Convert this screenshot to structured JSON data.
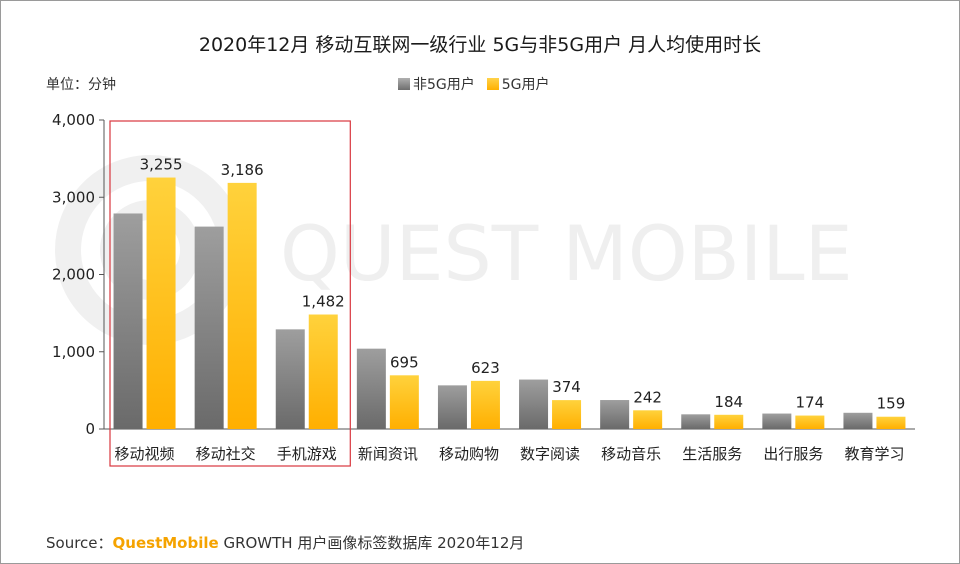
{
  "chart_data": {
    "type": "bar",
    "title": "2020年12月 移动互联网一级行业 5G与非5G用户 月人均使用时长",
    "unit_label": "单位：分钟",
    "categories": [
      "移动视频",
      "移动社交",
      "手机游戏",
      "新闻资讯",
      "移动购物",
      "数字阅读",
      "移动音乐",
      "生活服务",
      "出行服务",
      "教育学习"
    ],
    "series": [
      {
        "name": "非5G用户",
        "color": "#8c8c8c",
        "values": [
          2790,
          2620,
          1290,
          1040,
          565,
          640,
          375,
          190,
          200,
          210
        ],
        "labeled": false
      },
      {
        "name": "5G用户",
        "color": "#ffc000",
        "values": [
          3255,
          3186,
          1482,
          695,
          623,
          374,
          242,
          184,
          174,
          159
        ],
        "labeled": true
      }
    ],
    "data_labels": [
      "3,255",
      "3,186",
      "1,482",
      "695",
      "623",
      "374",
      "242",
      "184",
      "174",
      "159"
    ],
    "y_ticks": [
      "0",
      "1,000",
      "2,000",
      "3,000",
      "4,000"
    ],
    "ylim": [
      0,
      4000
    ],
    "highlight_categories": [
      "移动视频",
      "移动社交",
      "手机游戏"
    ],
    "highlight_color": "#d9363e",
    "watermark": "QUEST MOBILE"
  },
  "footer": {
    "prefix": "Source：",
    "brand": "QuestMobile",
    "rest": " GROWTH 用户画像标签数据库  2020年12月"
  }
}
